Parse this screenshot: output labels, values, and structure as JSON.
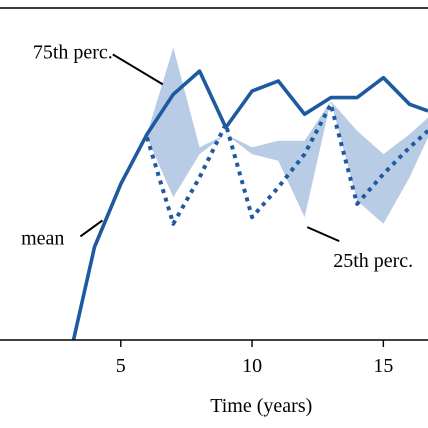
{
  "chart_data": {
    "type": "line",
    "title": "",
    "xlabel": "Time (years)",
    "ylabel": "",
    "xlim": [
      0.4,
      16.7
    ],
    "ylim": [
      0,
      1
    ],
    "xticks": [
      5,
      10,
      15
    ],
    "grid": false,
    "legend": "none",
    "series": [
      {
        "name": "mean",
        "style": "solid",
        "color": "#1f5aa0",
        "points": [
          [
            3.2,
            0.0
          ],
          [
            4,
            0.28
          ],
          [
            5,
            0.47
          ],
          [
            6,
            0.62
          ],
          [
            7,
            0.74
          ],
          [
            8,
            0.81
          ],
          [
            9,
            0.64
          ],
          [
            10,
            0.75
          ],
          [
            11,
            0.78
          ],
          [
            12,
            0.68
          ],
          [
            13,
            0.73
          ],
          [
            14,
            0.73
          ],
          [
            15,
            0.79
          ],
          [
            16,
            0.71
          ],
          [
            16.7,
            0.69
          ]
        ]
      },
      {
        "name": "25th perc.",
        "style": "dotted",
        "color": "#1f5aa0",
        "points": [
          [
            6,
            0.61
          ],
          [
            7,
            0.35
          ],
          [
            8,
            0.49
          ],
          [
            9,
            0.65
          ],
          [
            10,
            0.37
          ],
          [
            11,
            0.46
          ],
          [
            12,
            0.56
          ],
          [
            13,
            0.71
          ],
          [
            14,
            0.41
          ],
          [
            15,
            0.5
          ],
          [
            16,
            0.58
          ],
          [
            16.7,
            0.63
          ]
        ]
      },
      {
        "name": "75th perc.",
        "style": "area-upper",
        "color": "#b8cce6",
        "points": [
          [
            6,
            0.62
          ],
          [
            7,
            0.88
          ],
          [
            8,
            0.58
          ],
          [
            9,
            0.62
          ],
          [
            10,
            0.58
          ],
          [
            11,
            0.6
          ],
          [
            12,
            0.6
          ],
          [
            13,
            0.72
          ],
          [
            14,
            0.63
          ],
          [
            15,
            0.56
          ],
          [
            16,
            0.62
          ],
          [
            16.7,
            0.67
          ]
        ]
      }
    ],
    "band": {
      "upper_series": "75th perc.",
      "lower_points": [
        [
          6,
          0.61
        ],
        [
          7,
          0.43
        ],
        [
          8,
          0.56
        ],
        [
          9,
          0.62
        ],
        [
          10,
          0.56
        ],
        [
          11,
          0.54
        ],
        [
          12,
          0.37
        ],
        [
          13,
          0.72
        ],
        [
          14,
          0.42
        ],
        [
          15,
          0.35
        ],
        [
          16,
          0.49
        ],
        [
          16.7,
          0.61
        ]
      ],
      "color": "#b8cce6"
    },
    "annotations": [
      {
        "text": "75th perc.",
        "target_series": "75th perc.",
        "target": [
          6.6,
          0.77
        ],
        "align": "above-left"
      },
      {
        "text": "mean",
        "target_series": "mean",
        "target": [
          4.3,
          0.36
        ],
        "align": "left"
      },
      {
        "text": "25th perc.",
        "target_series": "25th perc.",
        "target": [
          12.1,
          0.34
        ],
        "align": "below-right"
      }
    ]
  }
}
